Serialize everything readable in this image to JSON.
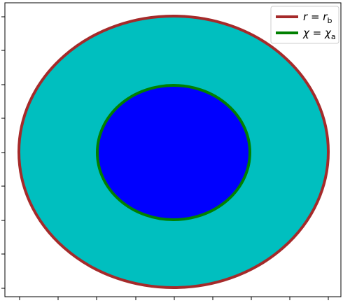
{
  "legend": {
    "items": [
      {
        "label": "r = r_b",
        "color": "#a52a2a"
      },
      {
        "label": "χ = χ_a",
        "color": "#008000"
      }
    ]
  },
  "colors": {
    "outer_fill": "#00bfbf",
    "inner_fill": "#0000ff",
    "outer_boundary": "#a52a2a",
    "inner_boundary": "#008000",
    "axes_frame": "#000000"
  }
}
